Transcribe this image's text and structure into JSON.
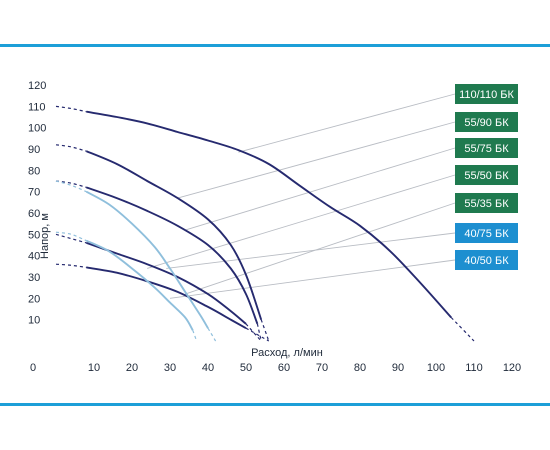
{
  "chart_data": {
    "type": "line",
    "title": "",
    "xlabel": "Расход, л/мин",
    "ylabel": "Напор, м",
    "xlim": [
      0,
      120
    ],
    "ylim": [
      0,
      120
    ],
    "x_ticks": [
      "0",
      "10",
      "20",
      "30",
      "40",
      "50",
      "60",
      "70",
      "80",
      "90",
      "100",
      "110",
      "120"
    ],
    "y_ticks": [
      "10",
      "20",
      "30",
      "40",
      "50",
      "60",
      "70",
      "80",
      "90",
      "100",
      "110",
      "120"
    ],
    "grid": false,
    "legend": "right",
    "series": [
      {
        "name": "110/110 БК",
        "color": "#262a6f",
        "badge_color": "#1f7a4f",
        "dashed": [
          [
            0,
            110
          ],
          [
            4,
            109
          ],
          [
            8,
            107.5
          ]
        ],
        "points": [
          [
            8,
            107.5
          ],
          [
            16,
            105
          ],
          [
            24,
            102
          ],
          [
            32,
            98
          ],
          [
            40,
            94
          ],
          [
            48,
            89.5
          ],
          [
            56,
            83
          ],
          [
            64,
            73
          ],
          [
            72,
            63
          ],
          [
            80,
            54
          ],
          [
            88,
            42
          ],
          [
            96,
            27
          ],
          [
            104,
            11
          ]
        ],
        "tail": [
          [
            104,
            11
          ],
          [
            110,
            0
          ]
        ],
        "leader_from": [
          48,
          88.5
        ]
      },
      {
        "name": "55/90 БК",
        "color": "#262a6f",
        "badge_color": "#1f7a4f",
        "dashed": [
          [
            0,
            92
          ],
          [
            4,
            91
          ],
          [
            8,
            89
          ]
        ],
        "points": [
          [
            8,
            89
          ],
          [
            16,
            83
          ],
          [
            24,
            75
          ],
          [
            32,
            67
          ],
          [
            40,
            57
          ],
          [
            46,
            45
          ],
          [
            50,
            31
          ],
          [
            54,
            10
          ]
        ],
        "tail": [
          [
            54,
            10
          ],
          [
            56,
            0
          ]
        ],
        "leader_from": [
          32,
          67
        ]
      },
      {
        "name": "55/75 БК",
        "color": "#262a6f",
        "badge_color": "#1f7a4f",
        "dashed": [
          [
            0,
            75
          ],
          [
            4,
            74
          ],
          [
            8,
            72
          ]
        ],
        "points": [
          [
            8,
            72
          ],
          [
            16,
            67
          ],
          [
            24,
            61
          ],
          [
            32,
            54
          ],
          [
            40,
            45
          ],
          [
            46,
            34
          ],
          [
            50,
            22
          ],
          [
            53,
            8
          ]
        ],
        "tail": [
          [
            53,
            8
          ],
          [
            54,
            0
          ]
        ],
        "leader_from": [
          34,
          52
        ]
      },
      {
        "name": "55/50 БК",
        "color": "#262a6f",
        "badge_color": "#1f7a4f",
        "dashed": [
          [
            0,
            50
          ],
          [
            4,
            48
          ],
          [
            8,
            46
          ]
        ],
        "points": [
          [
            8,
            46
          ],
          [
            16,
            41
          ],
          [
            24,
            36
          ],
          [
            32,
            30
          ],
          [
            40,
            22
          ],
          [
            46,
            14
          ],
          [
            50,
            8
          ]
        ],
        "tail": [
          [
            50,
            8
          ],
          [
            54,
            0
          ]
        ],
        "leader_from": [
          24,
          34
        ]
      },
      {
        "name": "55/35 БК",
        "color": "#262a6f",
        "badge_color": "#1f7a4f",
        "dashed": [
          [
            0,
            36
          ],
          [
            4,
            35.5
          ],
          [
            8,
            34.5
          ]
        ],
        "points": [
          [
            8,
            34.5
          ],
          [
            16,
            32
          ],
          [
            24,
            28
          ],
          [
            32,
            23
          ],
          [
            40,
            16
          ],
          [
            46,
            10
          ],
          [
            50,
            6
          ]
        ],
        "tail": [
          [
            50,
            6
          ],
          [
            56,
            0
          ]
        ],
        "leader_from": [
          34,
          22
        ]
      },
      {
        "name": "40/75 БК",
        "color": "#8fbfdc",
        "badge_color": "#1d8fd0",
        "dashed": [
          [
            0,
            75
          ],
          [
            4,
            73
          ],
          [
            8,
            70
          ]
        ],
        "points": [
          [
            8,
            70
          ],
          [
            14,
            64
          ],
          [
            20,
            55
          ],
          [
            26,
            44
          ],
          [
            30,
            34
          ],
          [
            34,
            23
          ],
          [
            38,
            12
          ],
          [
            40,
            6
          ]
        ],
        "tail": [
          [
            40,
            6
          ],
          [
            42,
            0
          ]
        ],
        "leader_from": [
          29,
          34
        ]
      },
      {
        "name": "40/50 БК",
        "color": "#8fbfdc",
        "badge_color": "#1d8fd0",
        "dashed": [
          [
            0,
            51
          ],
          [
            4,
            50
          ],
          [
            8,
            47
          ]
        ],
        "points": [
          [
            8,
            47
          ],
          [
            14,
            42
          ],
          [
            20,
            34
          ],
          [
            26,
            25
          ],
          [
            30,
            18
          ],
          [
            34,
            11
          ],
          [
            36,
            5
          ]
        ],
        "tail": [
          [
            36,
            5
          ],
          [
            37,
            0
          ]
        ],
        "leader_from": [
          30,
          20
        ]
      }
    ]
  }
}
